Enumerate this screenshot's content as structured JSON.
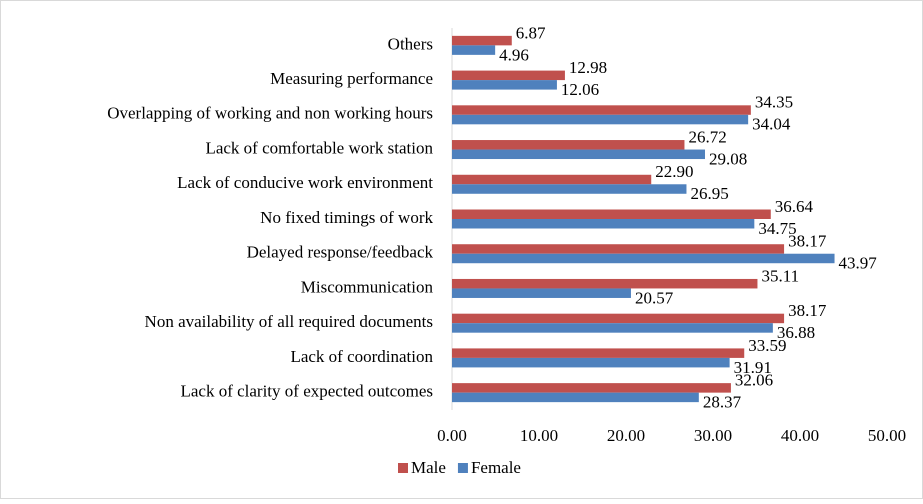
{
  "chart_data": {
    "type": "bar",
    "orientation": "horizontal",
    "categories": [
      "Others",
      "Measuring performance",
      "Overlapping of working and non working hours",
      "Lack of comfortable work station",
      "Lack of conducive work environment",
      "No fixed timings of work",
      "Delayed response/feedback",
      "Miscommunication",
      "Non availability of all required documents",
      "Lack of coordination",
      "Lack of clarity of expected outcomes"
    ],
    "series": [
      {
        "name": "Male",
        "color": "#c0504d",
        "values": [
          6.87,
          12.98,
          34.35,
          26.72,
          22.9,
          36.64,
          38.17,
          35.11,
          38.17,
          33.59,
          32.06
        ],
        "value_labels": [
          "6.87",
          "12.98",
          "34.35",
          "26.72",
          "22.90",
          "36.64",
          "38.17",
          "35.11",
          "38.17",
          "33.59",
          "32.06"
        ]
      },
      {
        "name": "Female",
        "color": "#4f81bd",
        "values": [
          4.96,
          12.06,
          34.04,
          29.08,
          26.95,
          34.75,
          43.97,
          20.57,
          36.88,
          31.91,
          28.37
        ],
        "value_labels": [
          "4.96",
          "12.06",
          "34.04",
          "29.08",
          "26.95",
          "34.75",
          "43.97",
          "20.57",
          "36.88",
          "31.91",
          "28.37"
        ]
      }
    ],
    "xlim": [
      0,
      50
    ],
    "xticks": [
      {
        "value": 0,
        "label": "0.00"
      },
      {
        "value": 10,
        "label": "10.00"
      },
      {
        "value": 20,
        "label": "20.00"
      },
      {
        "value": 30,
        "label": "30.00"
      },
      {
        "value": 40,
        "label": "40.00"
      },
      {
        "value": 50,
        "label": "50.00"
      }
    ],
    "legend": "bottom"
  }
}
